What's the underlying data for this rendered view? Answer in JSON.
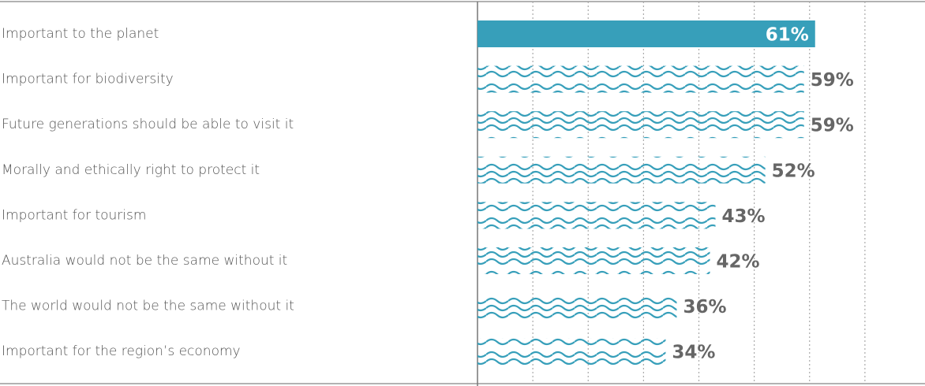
{
  "chart_data": {
    "type": "bar",
    "orientation": "horizontal",
    "categories": [
      "Important to the planet",
      "Important for biodiversity",
      "Future generations should be able to visit it",
      "Morally and ethically right to protect it",
      "Important for tourism",
      "Australia would not be the same without it",
      "The world would not be the same without it",
      "Important for the region’s economy"
    ],
    "values": [
      61,
      59,
      59,
      52,
      43,
      42,
      36,
      34
    ],
    "value_labels": [
      "61%",
      "59%",
      "59%",
      "52%",
      "43%",
      "42%",
      "36%",
      "34%"
    ],
    "color": "#379fba",
    "highlight": 0,
    "xlim": [
      0,
      80
    ],
    "xticks": [
      10,
      20,
      30,
      40,
      50,
      60,
      70
    ],
    "grid": true
  }
}
